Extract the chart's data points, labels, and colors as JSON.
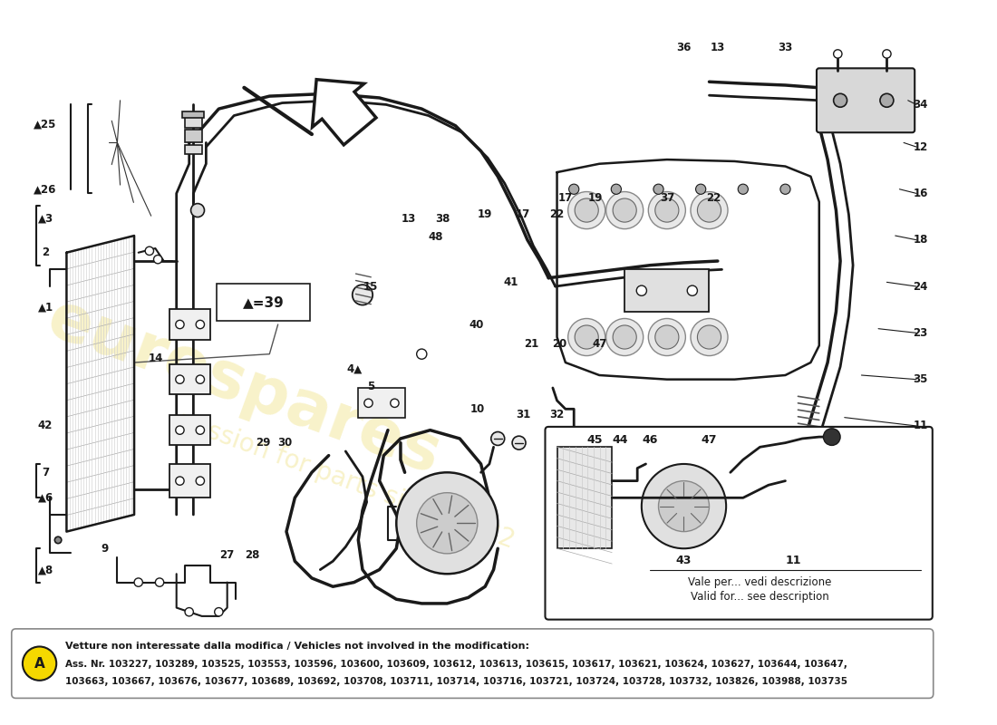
{
  "bg_color": "#ffffff",
  "watermark_text1": "eurospares",
  "watermark_text2": "passion for parts since",
  "watermark_color": "#e8d44d",
  "watermark_alpha": 0.3,
  "note_box": {
    "circle_letter": "A",
    "line1": "Vetture non interessate dalla modifica / Vehicles not involved in the modification:",
    "line2": "Ass. Nr. 103227, 103289, 103525, 103553, 103596, 103600, 103609, 103612, 103613, 103615, 103617, 103621, 103624, 103627, 103644, 103647,",
    "line3": "103663, 103667, 103676, 103677, 103689, 103692, 103708, 103711, 103714, 103716, 103721, 103724, 103728, 103732, 103826, 103988, 103735"
  },
  "inset_text1": "Vale per... vedi descrizione",
  "inset_text2": "Valid for... see description",
  "lc": "#1a1a1a",
  "lw": 1.5
}
